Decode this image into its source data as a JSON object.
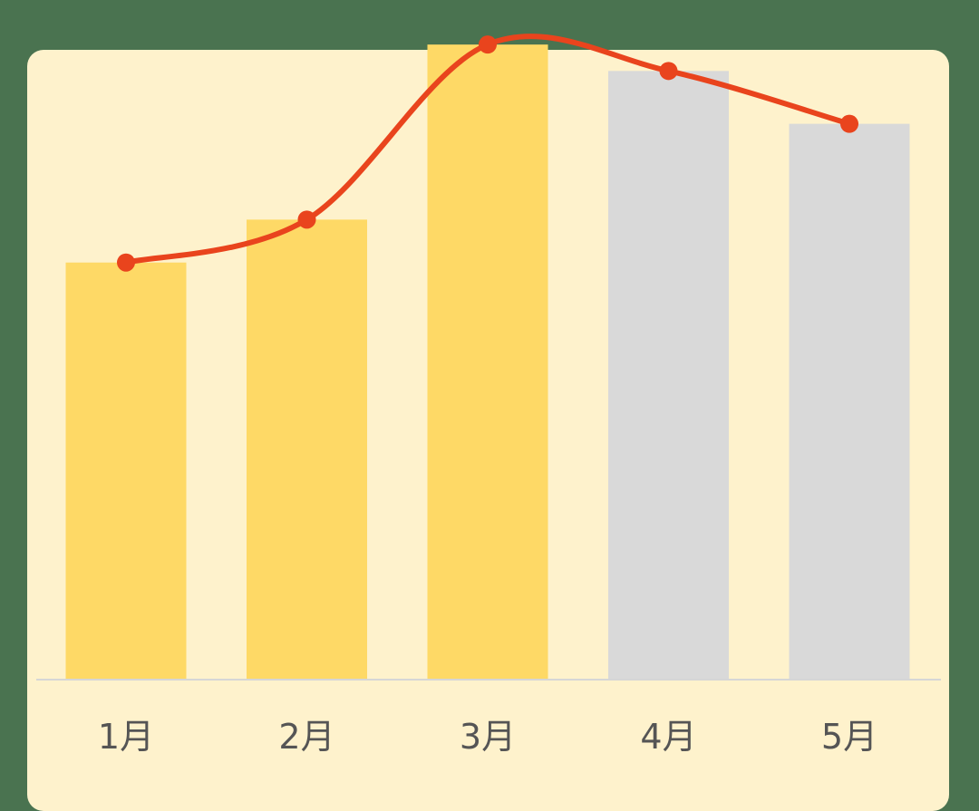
{
  "colors": {
    "background": "#4a7350",
    "card": "#fef2cc",
    "bar_highlight": "#fed966",
    "bar_muted": "#d9d9d9",
    "line": "#e9441d",
    "axis": "#d6d6d6",
    "label": "#555555"
  },
  "chart_data": {
    "type": "bar",
    "categories": [
      "1月",
      "2月",
      "3月",
      "4月",
      "5月"
    ],
    "values": [
      63,
      69.5,
      96,
      92,
      84
    ],
    "bar_colors": [
      "#fed966",
      "#fed966",
      "#fed966",
      "#d9d9d9",
      "#d9d9d9"
    ],
    "line_series": {
      "type": "line",
      "smooth": true,
      "values": [
        63,
        69.5,
        96,
        92,
        84
      ]
    },
    "ylim": [
      0,
      100
    ],
    "grid": false,
    "legend": "none",
    "title": "",
    "xlabel": "",
    "ylabel": ""
  }
}
